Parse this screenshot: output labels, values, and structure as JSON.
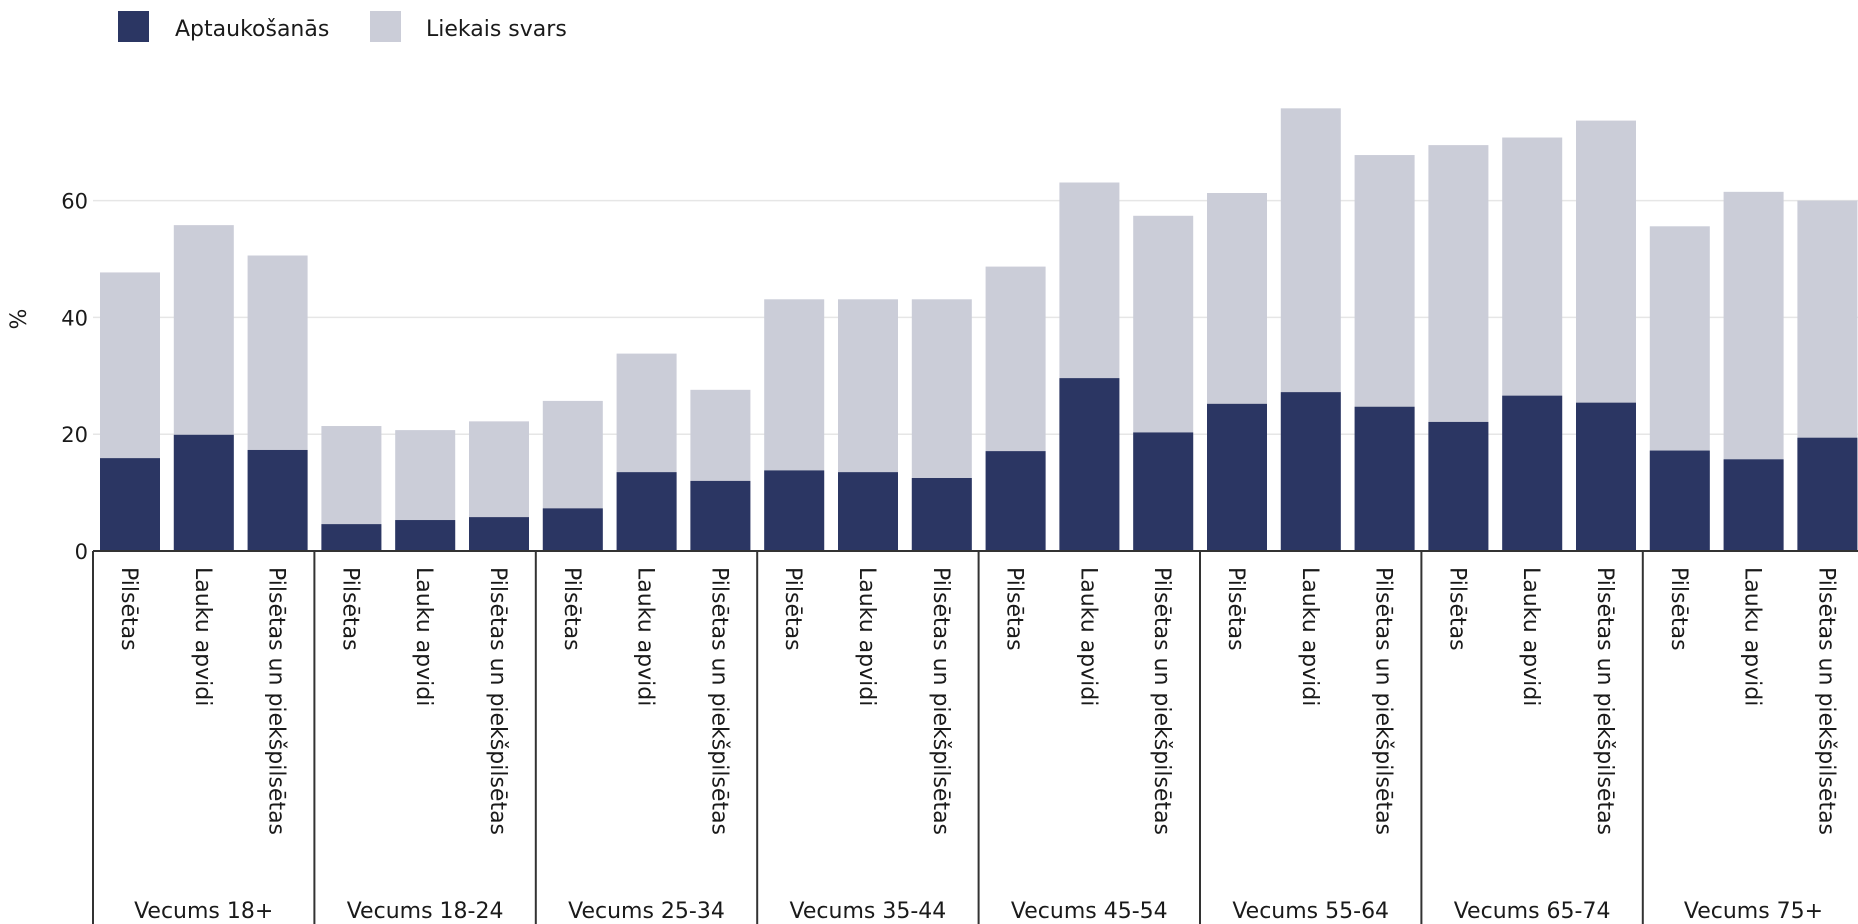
{
  "chart_data": {
    "type": "bar",
    "stacking": "overlay",
    "ylabel": "%",
    "ylim": [
      0,
      80
    ],
    "yticks": [
      0,
      20,
      40,
      60
    ],
    "grid": true,
    "legend_position": "top-left",
    "series": [
      {
        "name": "Aptaukošanās",
        "color": "#2b3663",
        "values": [
          15.9,
          19.9,
          17.3,
          4.6,
          5.3,
          5.8,
          7.3,
          13.5,
          12.0,
          13.8,
          13.5,
          12.5,
          17.1,
          29.6,
          20.3,
          25.2,
          27.2,
          24.7,
          22.1,
          26.6,
          25.4,
          17.2,
          15.7,
          19.4
        ]
      },
      {
        "name": "Liekais svars",
        "color": "#cbcdd8",
        "values": [
          47.7,
          55.8,
          50.6,
          21.4,
          20.7,
          22.2,
          25.7,
          33.8,
          27.6,
          43.1,
          43.1,
          43.1,
          48.7,
          63.1,
          57.4,
          61.3,
          75.8,
          67.8,
          69.5,
          70.8,
          73.7,
          55.6,
          61.5,
          60.0
        ]
      }
    ],
    "groups": [
      {
        "label": "Vecums 18+",
        "categories": [
          "Pilsētas",
          "Lauku apvidi",
          "Pilsētas un piekšpilsētas"
        ]
      },
      {
        "label": "Vecums 18-24",
        "categories": [
          "Pilsētas",
          "Lauku apvidi",
          "Pilsētas un piekšpilsētas"
        ]
      },
      {
        "label": "Vecums 25-34",
        "categories": [
          "Pilsētas",
          "Lauku apvidi",
          "Pilsētas un piekšpilsētas"
        ]
      },
      {
        "label": "Vecums 35-44",
        "categories": [
          "Pilsētas",
          "Lauku apvidi",
          "Pilsētas un piekšpilsētas"
        ]
      },
      {
        "label": "Vecums 45-54",
        "categories": [
          "Pilsētas",
          "Lauku apvidi",
          "Pilsētas un piekšpilsētas"
        ]
      },
      {
        "label": "Vecums 55-64",
        "categories": [
          "Pilsētas",
          "Lauku apvidi",
          "Pilsētas un piekšpilsētas"
        ]
      },
      {
        "label": "Vecums 65-74",
        "categories": [
          "Pilsētas",
          "Lauku apvidi",
          "Pilsētas un piekšpilsētas"
        ]
      },
      {
        "label": "Vecums 75+",
        "categories": [
          "Pilsētas",
          "Lauku apvidi",
          "Pilsētas un piekšpilsētas"
        ]
      }
    ]
  }
}
